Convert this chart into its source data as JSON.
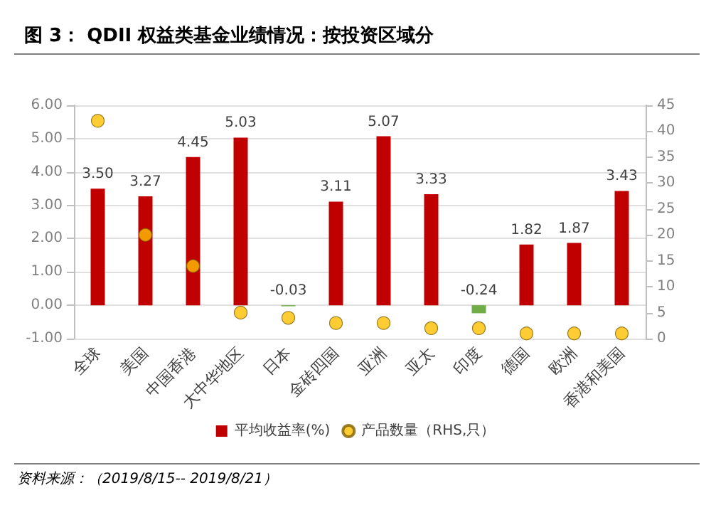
{
  "chart_data": {
    "type": "bar",
    "title": "图 3： QDII 权益类基金业绩情况：按投资区域分",
    "categories": [
      "全球",
      "美国",
      "中国香港",
      "大中华地区",
      "日本",
      "金砖四国",
      "亚洲",
      "亚太",
      "印度",
      "德国",
      "欧洲",
      "香港和美国"
    ],
    "series": [
      {
        "name": "平均收益率(%)",
        "color": "#c00000",
        "value_labels": [
          "3.50",
          "3.27",
          "4.45",
          "5.03",
          "-0.03",
          "3.11",
          "5.07",
          "3.33",
          "-0.24",
          "1.82",
          "1.87",
          "3.43"
        ],
        "colors": [
          "#c00000",
          "#c00000",
          "#c00000",
          "#c00000",
          "#70ad47",
          "#c00000",
          "#c00000",
          "#c00000",
          "#70ad47",
          "#c00000",
          "#c00000",
          "#c00000"
        ],
        "values": [
          3.5,
          3.27,
          4.45,
          5.03,
          -0.03,
          3.11,
          5.07,
          3.33,
          -0.24,
          1.82,
          1.87,
          3.43
        ]
      },
      {
        "name": "产品数量（RHS,只）",
        "type": "scatter",
        "axis": "y2",
        "color": "#ffc000",
        "values": [
          42,
          20,
          14,
          5,
          4,
          3,
          3,
          2,
          2,
          1,
          1,
          1
        ]
      }
    ],
    "ylim": [
      -1,
      6
    ],
    "yticks": [
      {
        "value": -1,
        "label": "-1.00"
      },
      {
        "value": 0,
        "label": "0.00"
      },
      {
        "value": 1,
        "label": "1.00"
      },
      {
        "value": 2,
        "label": "2.00"
      },
      {
        "value": 3,
        "label": "3.00"
      },
      {
        "value": 4,
        "label": "4.00"
      },
      {
        "value": 5,
        "label": "5.00"
      },
      {
        "value": 6,
        "label": "6.00"
      }
    ],
    "y2lim": [
      0,
      45
    ],
    "y2ticks": [
      0,
      5,
      10,
      15,
      20,
      25,
      30,
      35,
      40,
      45
    ],
    "grid": "y",
    "legend": "bottom",
    "marker": "circle",
    "annotations": [
      "资料来源：（2019/8/15-- 2019/8/21）"
    ]
  }
}
